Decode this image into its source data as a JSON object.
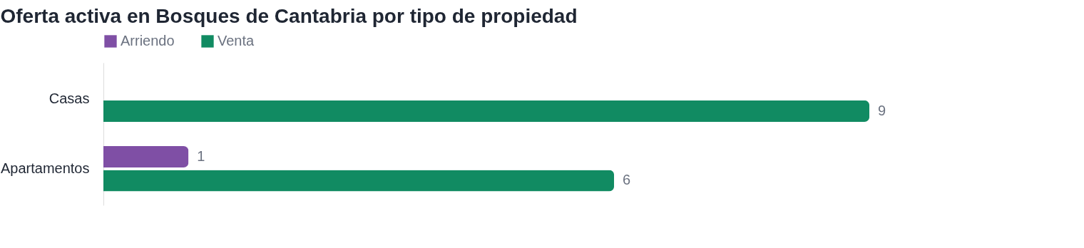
{
  "chart_data": {
    "type": "bar",
    "orientation": "horizontal",
    "title": "Oferta activa en Bosques de Cantabria por tipo de propiedad",
    "categories": [
      "Casas",
      "Apartamentos"
    ],
    "series": [
      {
        "name": "Arriendo",
        "color": "#7f4fa5",
        "values": [
          null,
          1
        ]
      },
      {
        "name": "Venta",
        "color": "#118b62",
        "values": [
          9,
          6
        ]
      }
    ],
    "data_labels": true,
    "legend": "top left",
    "grid": false
  }
}
